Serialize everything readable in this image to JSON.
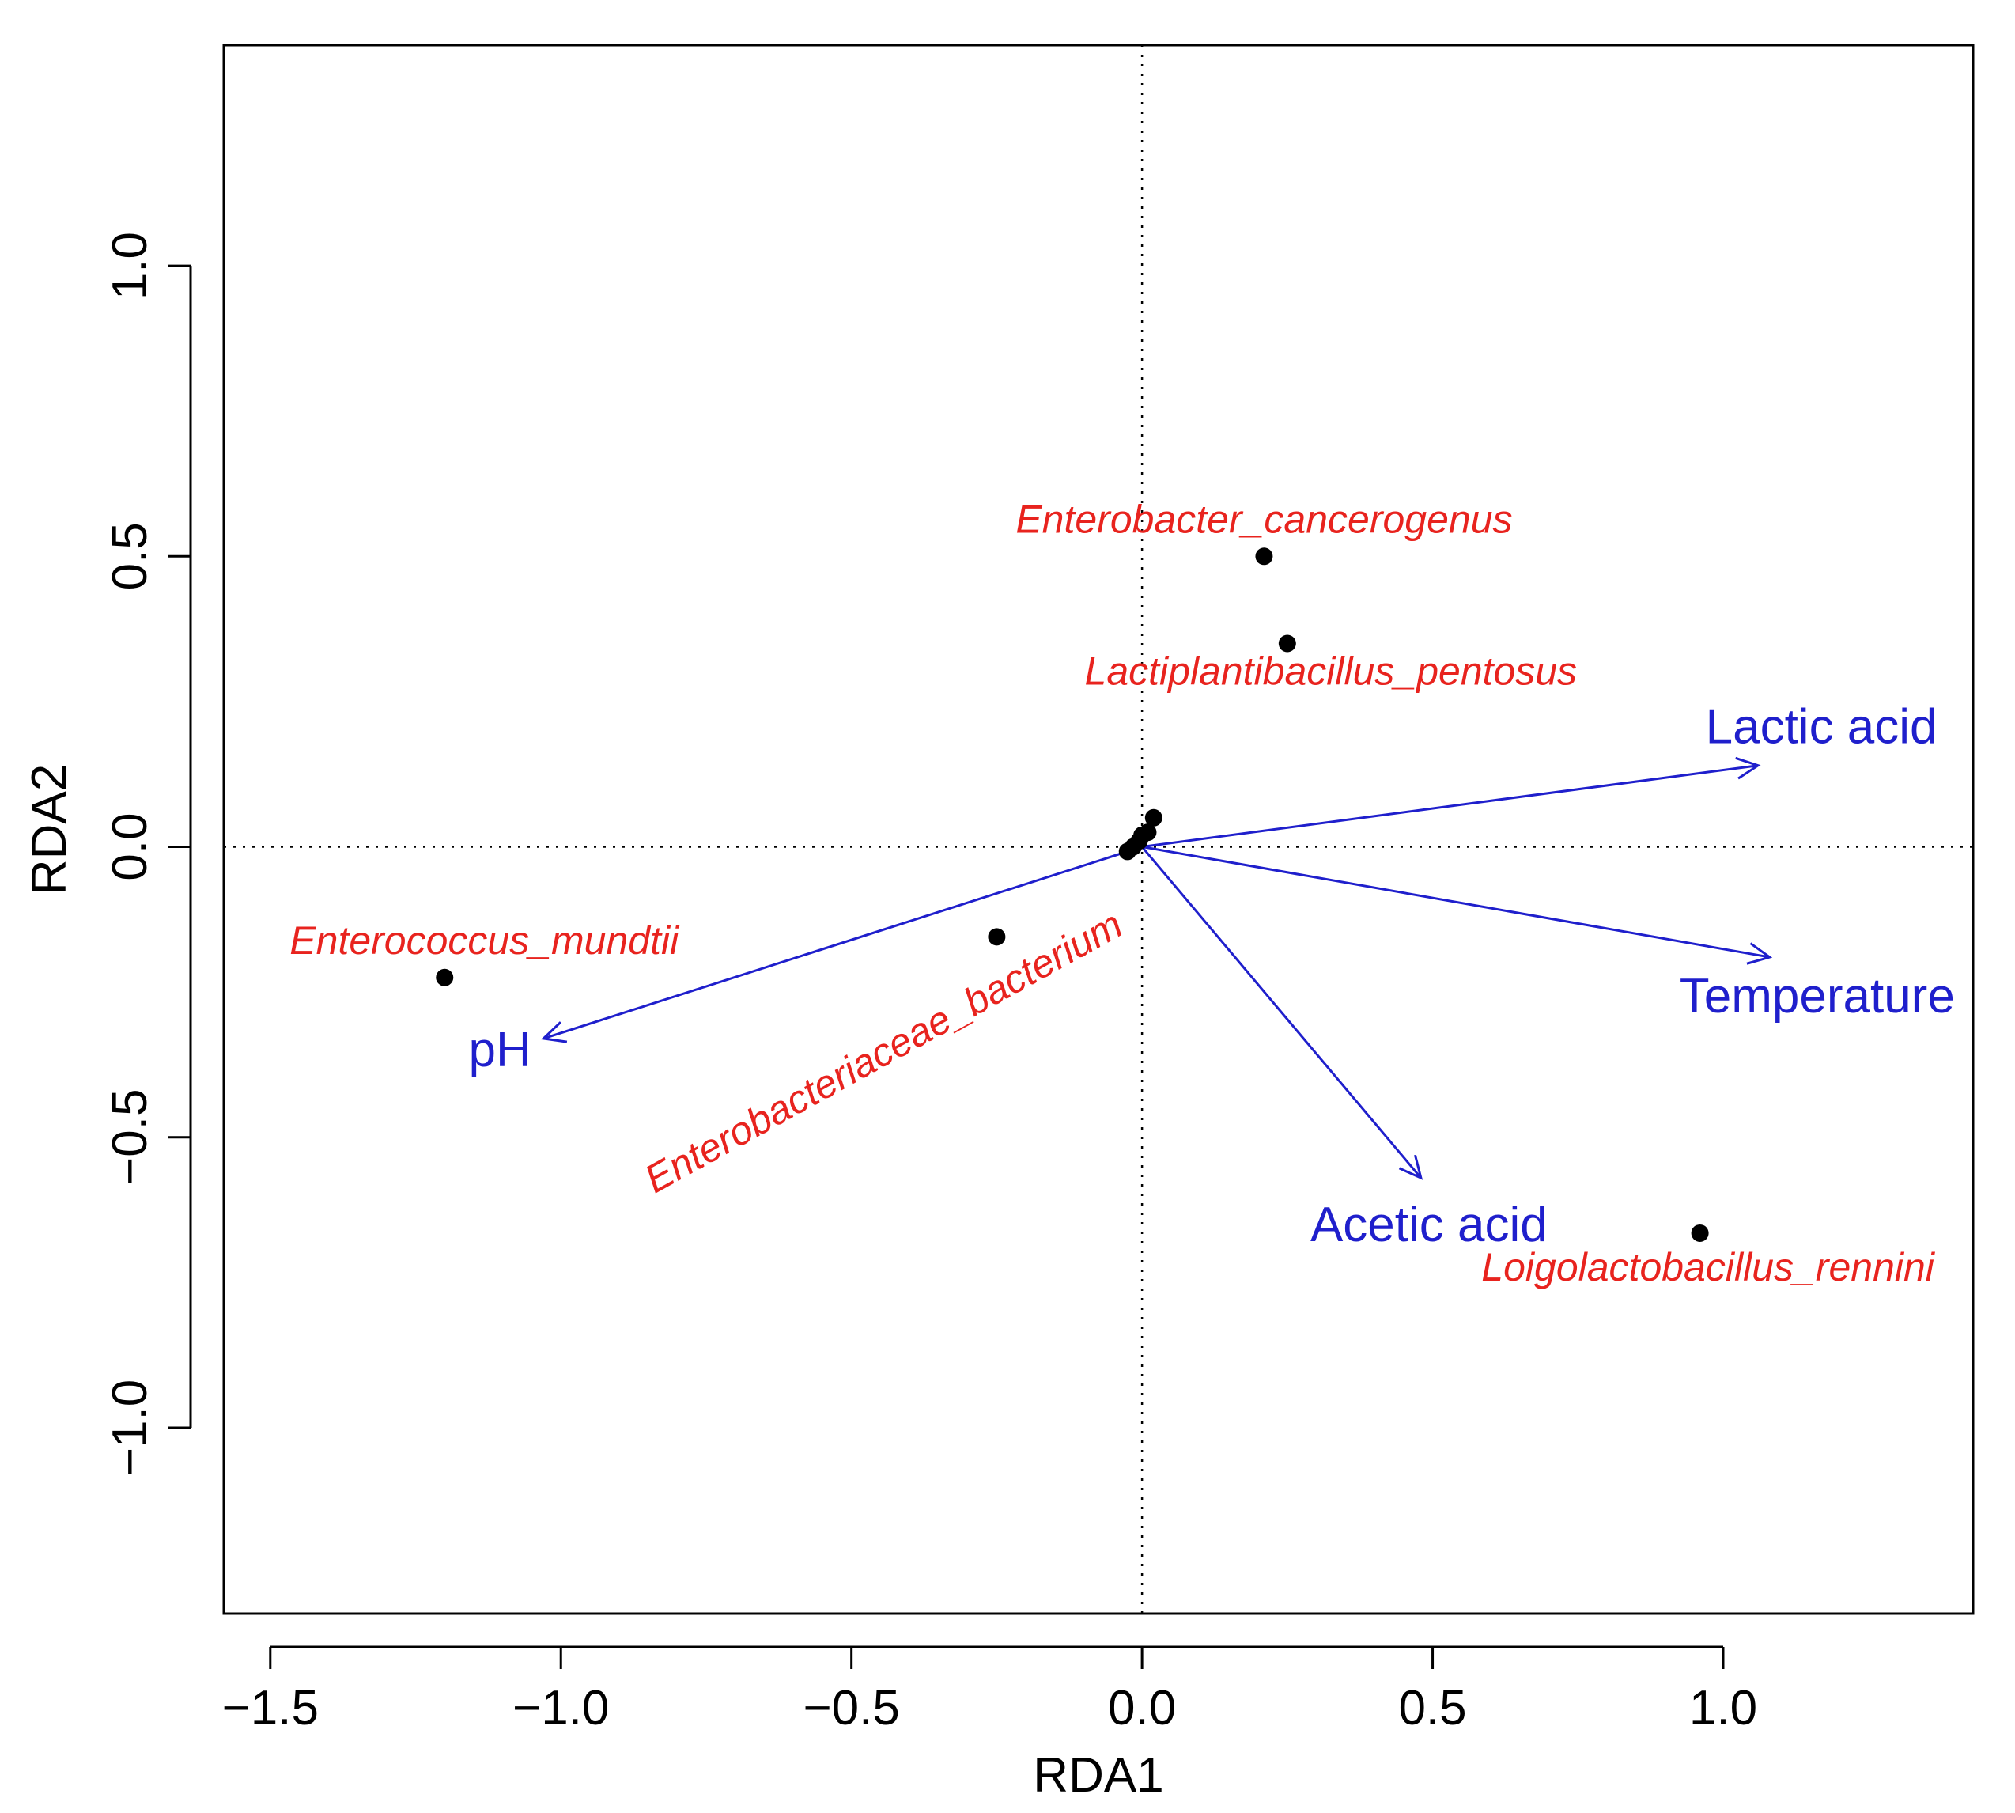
{
  "chart_data": {
    "type": "scatter",
    "title": "",
    "xlabel": "RDA1",
    "ylabel": "RDA2",
    "xlim": [
      -1.58,
      1.43
    ],
    "ylim": [
      -1.32,
      1.38
    ],
    "xticks": [
      -1.5,
      -1.0,
      -0.5,
      0.0,
      0.5,
      1.0
    ],
    "xtick_labels": [
      "−1.5",
      "−1.0",
      "−0.5",
      "0.0",
      "0.5",
      "1.0"
    ],
    "yticks": [
      -1.0,
      -0.5,
      0.0,
      0.5,
      1.0
    ],
    "ytick_labels": [
      "−1.0",
      "−0.5",
      "0.0",
      "0.5",
      "1.0"
    ],
    "reference_lines": {
      "x": 0,
      "y": 0,
      "style": "dotted"
    },
    "species": [
      {
        "name": "Enterobacter_cancerogenus",
        "x": 0.21,
        "y": 0.5
      },
      {
        "name": "Lactiplantibacillus_pentosus",
        "x": 0.25,
        "y": 0.35
      },
      {
        "name": "Enterococcus_mundtii",
        "x": -1.2,
        "y": -0.225
      },
      {
        "name": "Enterobacteriaceae_bacterium",
        "x": -0.25,
        "y": -0.155
      },
      {
        "name": "Loigolactobacillus_rennini",
        "x": 0.96,
        "y": -0.665
      }
    ],
    "unlabeled_points": [
      {
        "x": 0.02,
        "y": 0.05
      },
      {
        "x": 0.01,
        "y": 0.025
      },
      {
        "x": -0.005,
        "y": 0.01
      },
      {
        "x": -0.015,
        "y": 0.0
      },
      {
        "x": -0.025,
        "y": -0.008
      },
      {
        "x": 0.0,
        "y": 0.02
      }
    ],
    "environment_vectors": [
      {
        "name": "Lactic acid",
        "x": 1.06,
        "y": 0.14
      },
      {
        "name": "Temperature",
        "x": 1.08,
        "y": -0.19
      },
      {
        "name": "Acetic acid",
        "x": 0.48,
        "y": -0.57
      },
      {
        "name": "pH",
        "x": -1.03,
        "y": -0.33
      }
    ],
    "colors": {
      "species": "#e8231e",
      "vectors": "#1f1fcc",
      "points": "#000000",
      "axes": "#000000"
    }
  }
}
